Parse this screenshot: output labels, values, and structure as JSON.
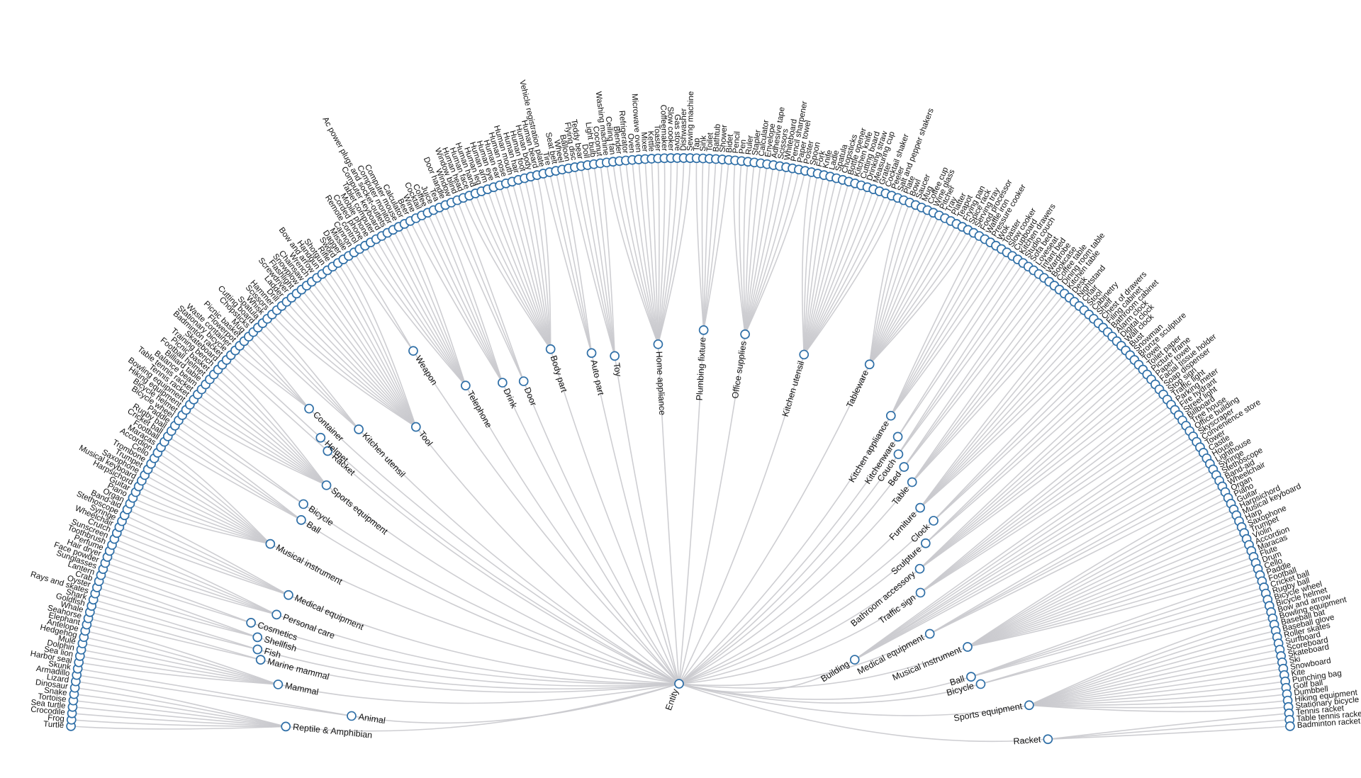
{
  "root": {
    "label": "Entity"
  },
  "groups": [
    {
      "label": "Reptile & Amphibian",
      "leaves": [
        "Turtle",
        "Frog",
        "Crocodile",
        "Sea turtle",
        "Tortoise",
        "Snake",
        "Dinosaur",
        "Lizard"
      ]
    },
    {
      "label": "Animal",
      "leaves": [
        "Armadillo",
        "Skunk"
      ]
    },
    {
      "label": "Mammal",
      "leaves": [
        "Harbor seal",
        "Sea lion",
        "Dolphin",
        "Mule",
        "Hedgehog",
        "Antelope",
        "Elephant"
      ]
    },
    {
      "label": "Marine mammal",
      "leaves": [
        "Seahorse",
        "Whale"
      ]
    },
    {
      "label": "Fish",
      "leaves": [
        "Goldfish",
        "Shark"
      ]
    },
    {
      "label": "Shellfish",
      "leaves": [
        "Rays and skates",
        "Oyster",
        "Crab"
      ]
    },
    {
      "label": "Cosmetics",
      "leaves": [
        "Lantern",
        "Sunglasses"
      ]
    },
    {
      "label": "Personal care",
      "leaves": [
        "Face powder",
        "Hair dryer",
        "Perfume",
        "Toothbrush",
        "Sunscreen"
      ]
    },
    {
      "label": "Medical equipment",
      "leaves": [
        "Crutch",
        "Wheelchair",
        "Syringe",
        "Stethoscope",
        "Band-aid"
      ]
    },
    {
      "label": "Musical instrument",
      "leaves": [
        "Organ",
        "Piano",
        "Guitar",
        "Harpsichord",
        "Musical keyboard",
        "Saxophone",
        "Trumpet",
        "Trombone",
        "Cello",
        "Accordion",
        "Maracas"
      ]
    },
    {
      "label": "Ball",
      "leaves": [
        "Football",
        "Cricket ball",
        "Rugby ball",
        "Paddle"
      ]
    },
    {
      "label": "Bicycle",
      "leaves": [
        "Bicycle wheel",
        "Bicycle helmet"
      ]
    },
    {
      "label": "Sports equipment",
      "leaves": [
        "Hiking equipment",
        "Bowling equipment",
        "Tennis racket",
        "Table tennis racket",
        "Balance beam",
        "Billiard table",
        "Football helmet",
        "Picnic basket",
        "Training bench",
        "Skateboard"
      ]
    },
    {
      "label": "Racket",
      "leaves": [
        "Badminton racket"
      ]
    },
    {
      "label": "Helmet",
      "leaves": [
        "Stationary bicycle"
      ]
    },
    {
      "label": "Container",
      "leaves": [
        "Waste container",
        "Flowerpot",
        "Picnic basket",
        "Mug"
      ]
    },
    {
      "label": "Kitchen utensil",
      "leaves": [
        "Chopsticks",
        "Cutting board",
        "Spatula",
        "Whisk"
      ]
    },
    {
      "label": "Tool",
      "leaves": [
        "Scissors",
        "Hammer",
        "Drill",
        "Ladder",
        "Screwdriver",
        "Flashlight",
        "Snowplow",
        "Chainsaw",
        "Wrench",
        "Bow and arrow",
        "Handgun",
        "Shotgun",
        "Rifle",
        "Sword",
        "Dagger"
      ]
    },
    {
      "label": "Weapon",
      "leaves": [
        "Missile",
        "Cannon"
      ]
    },
    {
      "label": "Telephone",
      "leaves": [
        "Remote control",
        "Corded phone",
        "Mobile phone",
        "Tablet computer",
        "Computer keyboard",
        "Ac power plugs and socket-outlets",
        "Computer monitor",
        "Computer mouse",
        "Calculator"
      ]
    },
    {
      "label": "Drink",
      "leaves": [
        "Beer",
        "Wine",
        "Cocktail",
        "Coffee",
        "Juice",
        "Tea"
      ]
    },
    {
      "label": "Door",
      "leaves": [
        "Door handle",
        "Window",
        "Window blind"
      ]
    },
    {
      "label": "Body part",
      "leaves": [
        "Human head",
        "Human face",
        "Human hand",
        "Human leg",
        "Human arm",
        "Human eye",
        "Human ear",
        "Human nose",
        "Human mouth",
        "Human hair",
        "Human foot",
        "Human body",
        "Human beard"
      ]
    },
    {
      "label": "Auto part",
      "leaves": [
        "Vehicle registration plate",
        "Tire",
        "Seat belt",
        "Wheel"
      ]
    },
    {
      "label": "Toy",
      "leaves": [
        "Balloon",
        "Flying disc",
        "Teddy bear",
        "Doll",
        "Light bulb",
        "Coconut"
      ]
    },
    {
      "label": "Home appliance",
      "leaves": [
        "Washing machine",
        "Ceiling fan",
        "Blender",
        "Refrigerator",
        "Oven",
        "Microwave oven",
        "Mixer",
        "Kettle",
        "Toaster",
        "Coffeemaker",
        "Slow cooker",
        "Gas stove",
        "Dishwasher",
        "Sewing machine"
      ]
    },
    {
      "label": "Plumbing fixture",
      "leaves": [
        "Tap",
        "Sink",
        "Toilet",
        "Bathtub",
        "Shower",
        "Bidet"
      ]
    },
    {
      "label": "Office supplies",
      "leaves": [
        "Pencil",
        "Pen",
        "Ruler",
        "Stapler",
        "Calculator",
        "Envelope",
        "Adhesive tape",
        "Scissors",
        "Whiteboard",
        "Pencil sharpener",
        "Paper towel",
        "Poster"
      ]
    },
    {
      "label": "Kitchen utensil",
      "leaves": [
        "Spoon",
        "Fork",
        "Knife",
        "Ladle",
        "Spatula",
        "Chopsticks",
        "Bottle opener",
        "Kitchen knife",
        "Cutting board",
        "Drinking straw",
        "Measuring cup",
        "Grater",
        "Cocktail shaker",
        "Peeler",
        "Salt and pepper shakers"
      ]
    },
    {
      "label": "Tableware",
      "leaves": [
        "Plate",
        "Bowl",
        "Saucer",
        "Mug",
        "Coffee cup",
        "Wine glass",
        "Pitcher",
        "Tray",
        "Platter",
        "Teapot",
        "Frying pan",
        "Spice rack",
        "Serving tray"
      ]
    },
    {
      "label": "Kitchen appliance",
      "leaves": [
        "Food processor",
        "Waffle iron",
        "Pressure cooker",
        "Wok",
        "Toaster",
        "Slow cooker"
      ]
    },
    {
      "label": "Kitchenware",
      "leaves": [
        "Cupboard",
        "Kitchen drawers"
      ]
    },
    {
      "label": "Couch",
      "leaves": [
        "Studio couch",
        "Sofa bed",
        "Loveseat"
      ]
    },
    {
      "label": "Bed",
      "leaves": [
        "Infant bed",
        "Wardrobe",
        "Bookcase"
      ]
    },
    {
      "label": "Table",
      "leaves": [
        "Coffee table",
        "Dining room table",
        "Kitchen table",
        "Desk",
        "Nightstand"
      ]
    },
    {
      "label": "Furniture",
      "leaves": [
        "Chair",
        "Stool",
        "Cabinetry",
        "Shelf",
        "Chest of drawers",
        "Filing cabinet",
        "Bathroom cabinet"
      ]
    },
    {
      "label": "Clock",
      "leaves": [
        "Alarm clock",
        "Digital clock",
        "Wall clock"
      ]
    },
    {
      "label": "Sculpture",
      "leaves": [
        "Bust",
        "Snowman",
        "Bronze sculpture"
      ]
    },
    {
      "label": "Bathroom accessory",
      "leaves": [
        "Towel",
        "Toilet paper",
        "Picture frame",
        "Paper towel",
        "Facial tissue holder",
        "Soap dispenser"
      ]
    },
    {
      "label": "Traffic sign",
      "leaves": [
        "Stop sign",
        "Traffic light",
        "Parking meter",
        "Fire hydrant",
        "Street light",
        "Billboard"
      ]
    },
    {
      "label": "Building",
      "leaves": [
        "Tree house",
        "Office building",
        "Skyscraper",
        "Convenience store",
        "Tower",
        "Castle",
        "House",
        "Lighthouse"
      ]
    },
    {
      "label": "Medical equipment",
      "leaves": [
        "Syringe",
        "Stethoscope",
        "Band-aid",
        "Wheelchair"
      ]
    },
    {
      "label": "Musical instrument",
      "leaves": [
        "Organ",
        "Piano",
        "Guitar",
        "Harpsichord",
        "Musical keyboard",
        "Harp",
        "Saxophone",
        "Trumpet",
        "Violin",
        "Accordion",
        "Maracas",
        "Flute",
        "Drum",
        "Cello"
      ]
    },
    {
      "label": "Ball",
      "leaves": [
        "Paddle",
        "Football",
        "Cricket ball",
        "Rugby ball"
      ]
    },
    {
      "label": "Bicycle",
      "leaves": [
        "Bicycle wheel",
        "Bicycle helmet"
      ]
    },
    {
      "label": "Sports equipment",
      "leaves": [
        "Bow and arrow",
        "Bowling equipment",
        "Baseball bat",
        "Baseball glove",
        "Roller skates",
        "Surfboard",
        "Scoreboard",
        "Skateboard",
        "Ski",
        "Snowboard",
        "Kite",
        "Punching bag",
        "Golf ball",
        "Dumbbell",
        "Hiking equipment",
        "Stationary bicycle"
      ]
    },
    {
      "label": "Racket",
      "leaves": [
        "Tennis racket",
        "Table tennis racket",
        "Badminton racket"
      ]
    }
  ]
}
